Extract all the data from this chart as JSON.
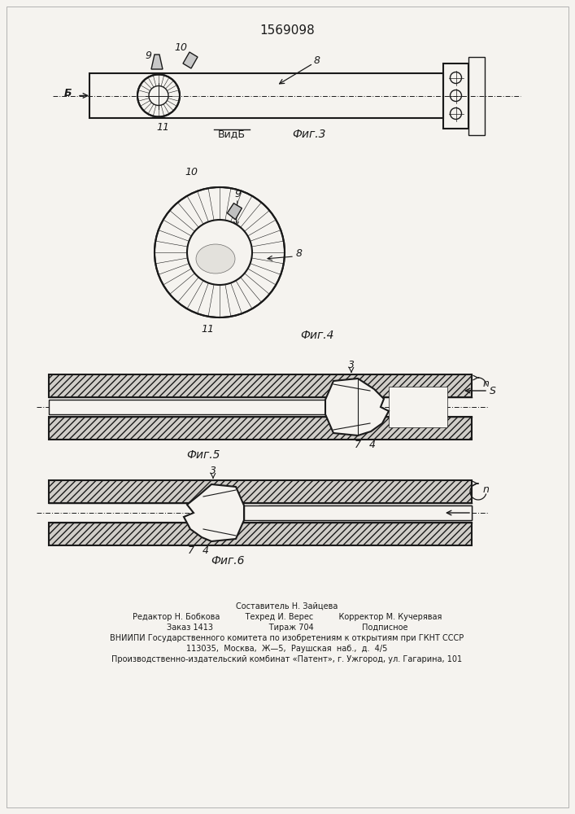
{
  "title": "1569098",
  "bg_color": "#f5f3ef",
  "line_color": "#1a1a1a",
  "fig3_label": "Фиг.3",
  "fig4_label": "Фиг.4",
  "fig5_label": "Фиг.5",
  "fig6_label": "Фиг.6",
  "vidb_label": "ВидБ",
  "footer_line1": "Составитель Н. Зайцева",
  "footer_line2": "Редактор Н. Бобкова",
  "footer_line2b": "Техред И. Верес",
  "footer_line2c": "Корректор М. Кучерявая",
  "footer_line3": "Заказ 1413",
  "footer_line3b": "Тираж 704",
  "footer_line3c": "Подписное",
  "footer_line4": "ВНИИПИ Государственного комитета по изобретениям к открытиям при ГКНТ СССР",
  "footer_line5": "113035,  Москва,  Ж—5,  Раушская  наб.,  д.  4/5",
  "footer_line6": "Производственно-издательский комбинат «Патент», г. Ужгород, ул. Гагарина, 101"
}
